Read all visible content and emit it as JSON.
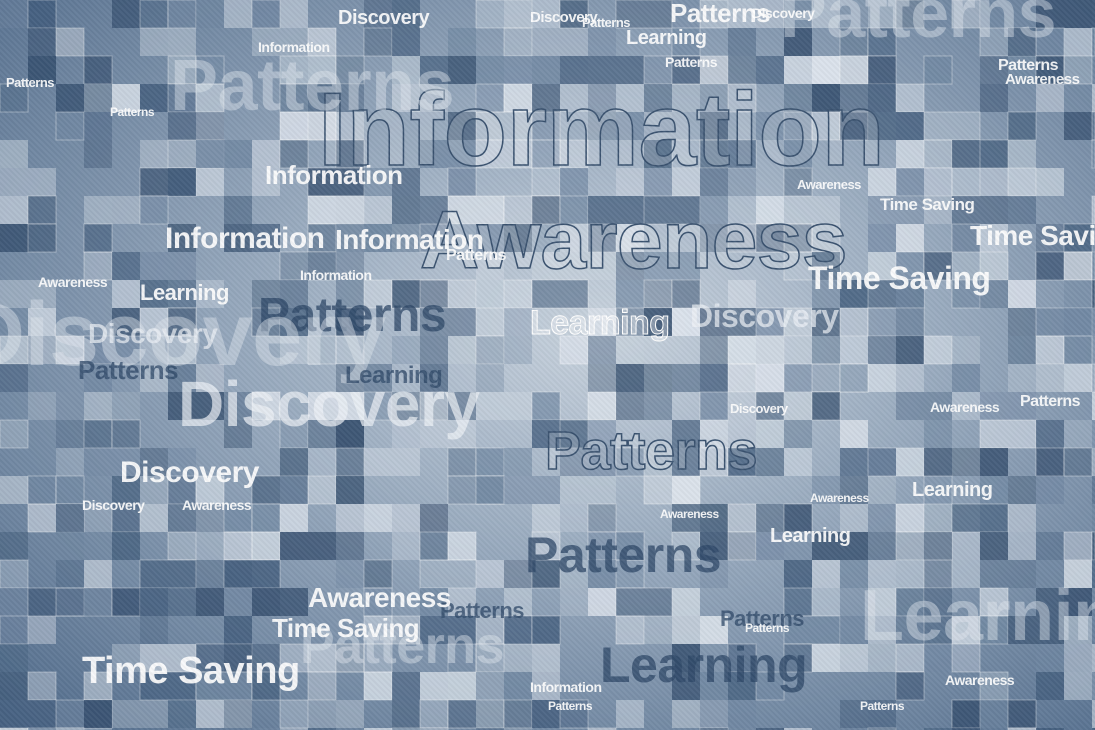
{
  "palette": {
    "dark": "#2e4868",
    "mid": "#6f86a1",
    "light": "#c9d3de",
    "deep": "#3d5878",
    "pale": "#e4eaf1"
  },
  "words": {
    "information": "Information",
    "awareness": "Awareness",
    "patterns": "Patterns",
    "discovery": "Discovery",
    "learning": "Learning",
    "time_saving": "Time Saving"
  }
}
